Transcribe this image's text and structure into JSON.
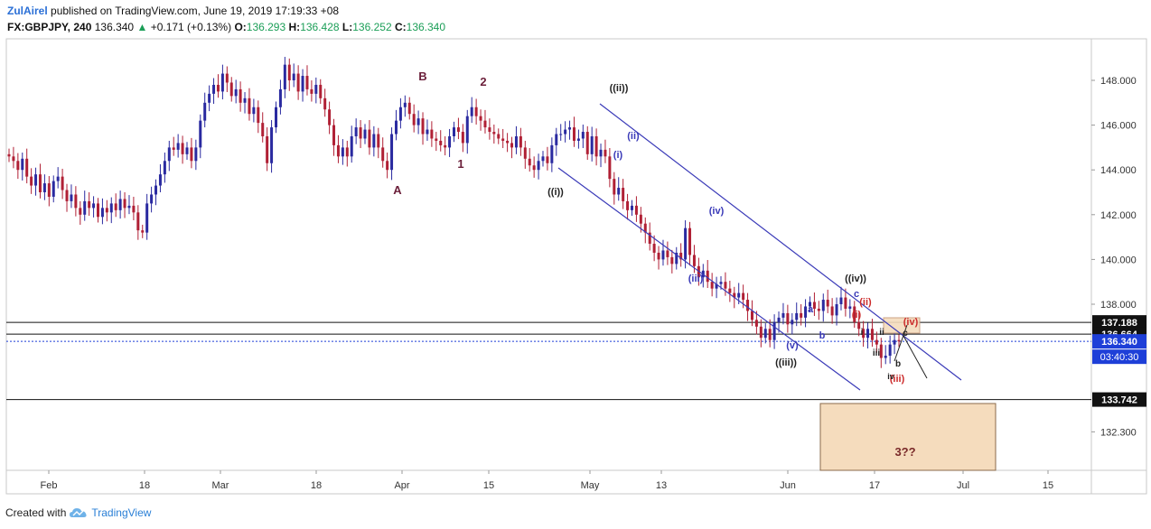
{
  "header": {
    "author": "ZulAirel",
    "published_text": "published on TradingView.com, June 19, 2019 17:19:33 +08",
    "symbol": "FX:GBPJPY, 240",
    "last_price": "136.340",
    "change_arrow": "▲",
    "change": "+0.171 (+0.13%)",
    "o_label": "O:",
    "o_value": "136.293",
    "h_label": "H:",
    "h_value": "136.428",
    "l_label": "L:",
    "l_value": "136.252",
    "c_label": "C:",
    "c_value": "136.340"
  },
  "footer": {
    "created_with": "Created with",
    "brand": "TradingView",
    "logo_icon": "tradingview-cloud-icon"
  },
  "colors": {
    "up_candle": "#2a2aa0",
    "down_candle": "#b02035",
    "channel": "#3a3ab8",
    "accent_blue": "#1e3fd8",
    "wave_primary": "#6b1f3a",
    "wave_blue": "#3a3ab8",
    "wave_red": "#cc2b2b",
    "target_box": "#f5dcbd"
  },
  "chart_data": {
    "type": "candlestick",
    "x_ticks": [
      "Feb",
      "18",
      "Mar",
      "18",
      "Apr",
      "15",
      "May",
      "13",
      "Jun",
      "17",
      "Jul",
      "15"
    ],
    "y_ticks": [
      "148.000",
      "146.000",
      "144.000",
      "142.000",
      "140.000",
      "138.000",
      "132.300"
    ],
    "ylim": [
      130.9,
      149.5
    ],
    "price_labels": [
      {
        "value": 137.188,
        "text": "137.188",
        "style": "line"
      },
      {
        "value": 136.664,
        "text": "136.664",
        "style": "line"
      },
      {
        "value": 136.34,
        "text": "136.340",
        "style": "current"
      },
      {
        "value": 133.742,
        "text": "133.742",
        "style": "line"
      }
    ],
    "countdown": "03:40:30",
    "target_label": "3??",
    "series_closes": [
      144.6,
      144.4,
      144.0,
      144.5,
      143.7,
      143.3,
      143.8,
      143.0,
      143.4,
      142.8,
      143.5,
      143.7,
      143.1,
      142.6,
      142.9,
      142.3,
      142.0,
      142.6,
      142.3,
      142.5,
      141.9,
      142.3,
      142.1,
      142.5,
      142.2,
      142.7,
      142.3,
      142.4,
      142.1,
      141.3,
      141.2,
      142.5,
      142.9,
      143.3,
      143.8,
      144.4,
      145.0,
      144.9,
      145.2,
      144.7,
      145.0,
      144.4,
      145.0,
      146.2,
      147.0,
      147.4,
      147.8,
      147.5,
      148.3,
      147.9,
      147.3,
      147.6,
      147.0,
      147.2,
      146.5,
      146.8,
      146.1,
      145.5,
      144.3,
      145.9,
      146.8,
      147.6,
      148.7,
      148.0,
      148.3,
      147.5,
      148.2,
      147.6,
      147.4,
      147.8,
      147.2,
      146.7,
      146.0,
      145.1,
      144.6,
      145.0,
      144.6,
      145.5,
      145.9,
      145.4,
      145.8,
      145.0,
      145.6,
      145.0,
      144.4,
      144.0,
      145.6,
      146.2,
      146.8,
      147.0,
      146.5,
      146.0,
      146.3,
      145.6,
      145.8,
      145.4,
      145.3,
      145.1,
      145.0,
      145.5,
      145.9,
      145.7,
      145.2,
      146.4,
      146.8,
      146.4,
      146.2,
      145.9,
      145.7,
      145.6,
      145.4,
      145.3,
      145.2,
      145.0,
      145.5,
      145.0,
      144.5,
      144.2,
      144.0,
      144.4,
      144.6,
      144.3,
      145.1,
      145.6,
      145.6,
      145.8,
      145.9,
      145.3,
      145.4,
      145.7,
      144.7,
      145.5,
      144.6,
      144.9,
      144.6,
      143.6,
      142.9,
      143.2,
      142.6,
      142.2,
      142.4,
      142.0,
      141.6,
      141.2,
      140.7,
      140.3,
      140.0,
      140.4,
      140.1,
      139.8,
      140.3,
      140.0,
      141.4,
      140.2,
      139.7,
      139.2,
      139.5,
      139.0,
      138.7,
      138.9,
      139.0,
      138.7,
      138.5,
      138.3,
      138.5,
      138.2,
      137.7,
      137.3,
      137.0,
      136.5,
      136.9,
      136.4,
      137.2,
      137.4,
      137.6,
      137.1,
      137.3,
      137.6,
      137.4,
      137.9,
      138.1,
      137.8,
      137.7,
      138.2,
      137.9,
      137.5,
      138.0,
      138.3,
      137.8,
      137.9,
      137.2,
      136.9,
      136.5,
      136.9,
      136.4,
      136.2,
      135.6,
      135.7,
      136.2,
      136.4,
      136.34
    ]
  },
  "annotations": [
    {
      "text": "B",
      "color": "wave_primary"
    },
    {
      "text": "2",
      "color": "wave_primary"
    },
    {
      "text": "1",
      "color": "wave_primary"
    },
    {
      "text": "A",
      "color": "wave_primary"
    },
    {
      "text": "((ii))",
      "color": "dark"
    },
    {
      "text": "((i))",
      "color": "dark"
    },
    {
      "text": "(ii)",
      "color": "wave_blue"
    },
    {
      "text": "(i)",
      "color": "wave_blue"
    },
    {
      "text": "(iv)",
      "color": "wave_blue"
    },
    {
      "text": "(iii)",
      "color": "wave_blue"
    },
    {
      "text": "((iv))",
      "color": "dark"
    },
    {
      "text": "(v)",
      "color": "wave_blue"
    },
    {
      "text": "((iii))",
      "color": "dark"
    },
    {
      "text": "a",
      "color": "wave_blue"
    },
    {
      "text": "b",
      "color": "wave_blue"
    },
    {
      "text": "c",
      "color": "wave_blue"
    },
    {
      "text": "(ii)",
      "color": "wave_red"
    },
    {
      "text": "(i)",
      "color": "wave_red"
    },
    {
      "text": "(iv)",
      "color": "wave_red"
    },
    {
      "text": "i",
      "color": "dark"
    },
    {
      "text": "ii",
      "color": "dark"
    },
    {
      "text": "iii",
      "color": "dark"
    },
    {
      "text": "c",
      "color": "dark"
    },
    {
      "text": "b",
      "color": "dark"
    },
    {
      "text": "(iii)",
      "color": "wave_red"
    },
    {
      "text": "iv",
      "color": "dark"
    }
  ]
}
